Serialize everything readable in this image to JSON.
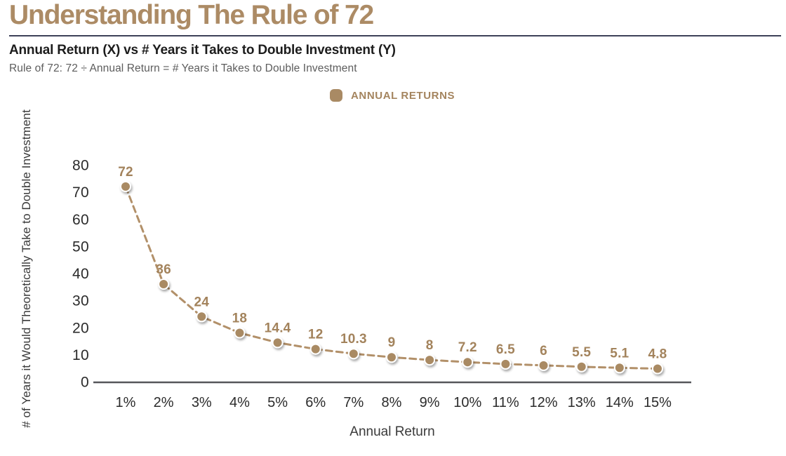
{
  "page": {
    "title": "Understanding The Rule of 72",
    "subtitle": "Annual Return (X) vs # Years it Takes to Double Investment (Y)",
    "formula": "Rule of 72: 72 ÷ Annual Return = # Years it Takes to Double Investment"
  },
  "legend": {
    "label": "ANNUAL RETURNS"
  },
  "colors": {
    "accent_tan": "#AC8B65",
    "line_tan": "#B29069",
    "point_fill": "#A98A64",
    "data_label": "#A3835C",
    "divider_navy": "#3D4158",
    "axis_line": "#55565a",
    "tick_text": "#2b2b2b",
    "axis_title_text": "#3a3a3a",
    "formula_gray": "#5d5d5d"
  },
  "chart_data": {
    "type": "line",
    "line_style": "dashed",
    "title": "Annual Return (X) vs # Years it Takes to Double Investment (Y)",
    "xlabel": "Annual Return",
    "ylabel": "# of Years it Would Theoretically Take to Double Investment",
    "categories": [
      "1%",
      "2%",
      "3%",
      "4%",
      "5%",
      "6%",
      "7%",
      "8%",
      "9%",
      "10%",
      "11%",
      "12%",
      "13%",
      "14%",
      "15%"
    ],
    "series": [
      {
        "name": "ANNUAL RETURNS",
        "values": [
          72,
          36,
          24,
          18,
          14.4,
          12,
          10.3,
          9,
          8,
          7.2,
          6.5,
          6,
          5.5,
          5.1,
          4.8
        ],
        "point_labels": [
          "72",
          "36",
          "24",
          "18",
          "14.4",
          "12",
          "10.3",
          "9",
          "8",
          "7.2",
          "6.5",
          "6",
          "5.5",
          "5.1",
          "4.8"
        ]
      }
    ],
    "yticks": [
      0,
      10,
      20,
      30,
      40,
      50,
      60,
      70,
      80
    ],
    "ylim": [
      0,
      85
    ],
    "grid": false,
    "legend_position": "top-center",
    "data_labels_shown": true
  }
}
